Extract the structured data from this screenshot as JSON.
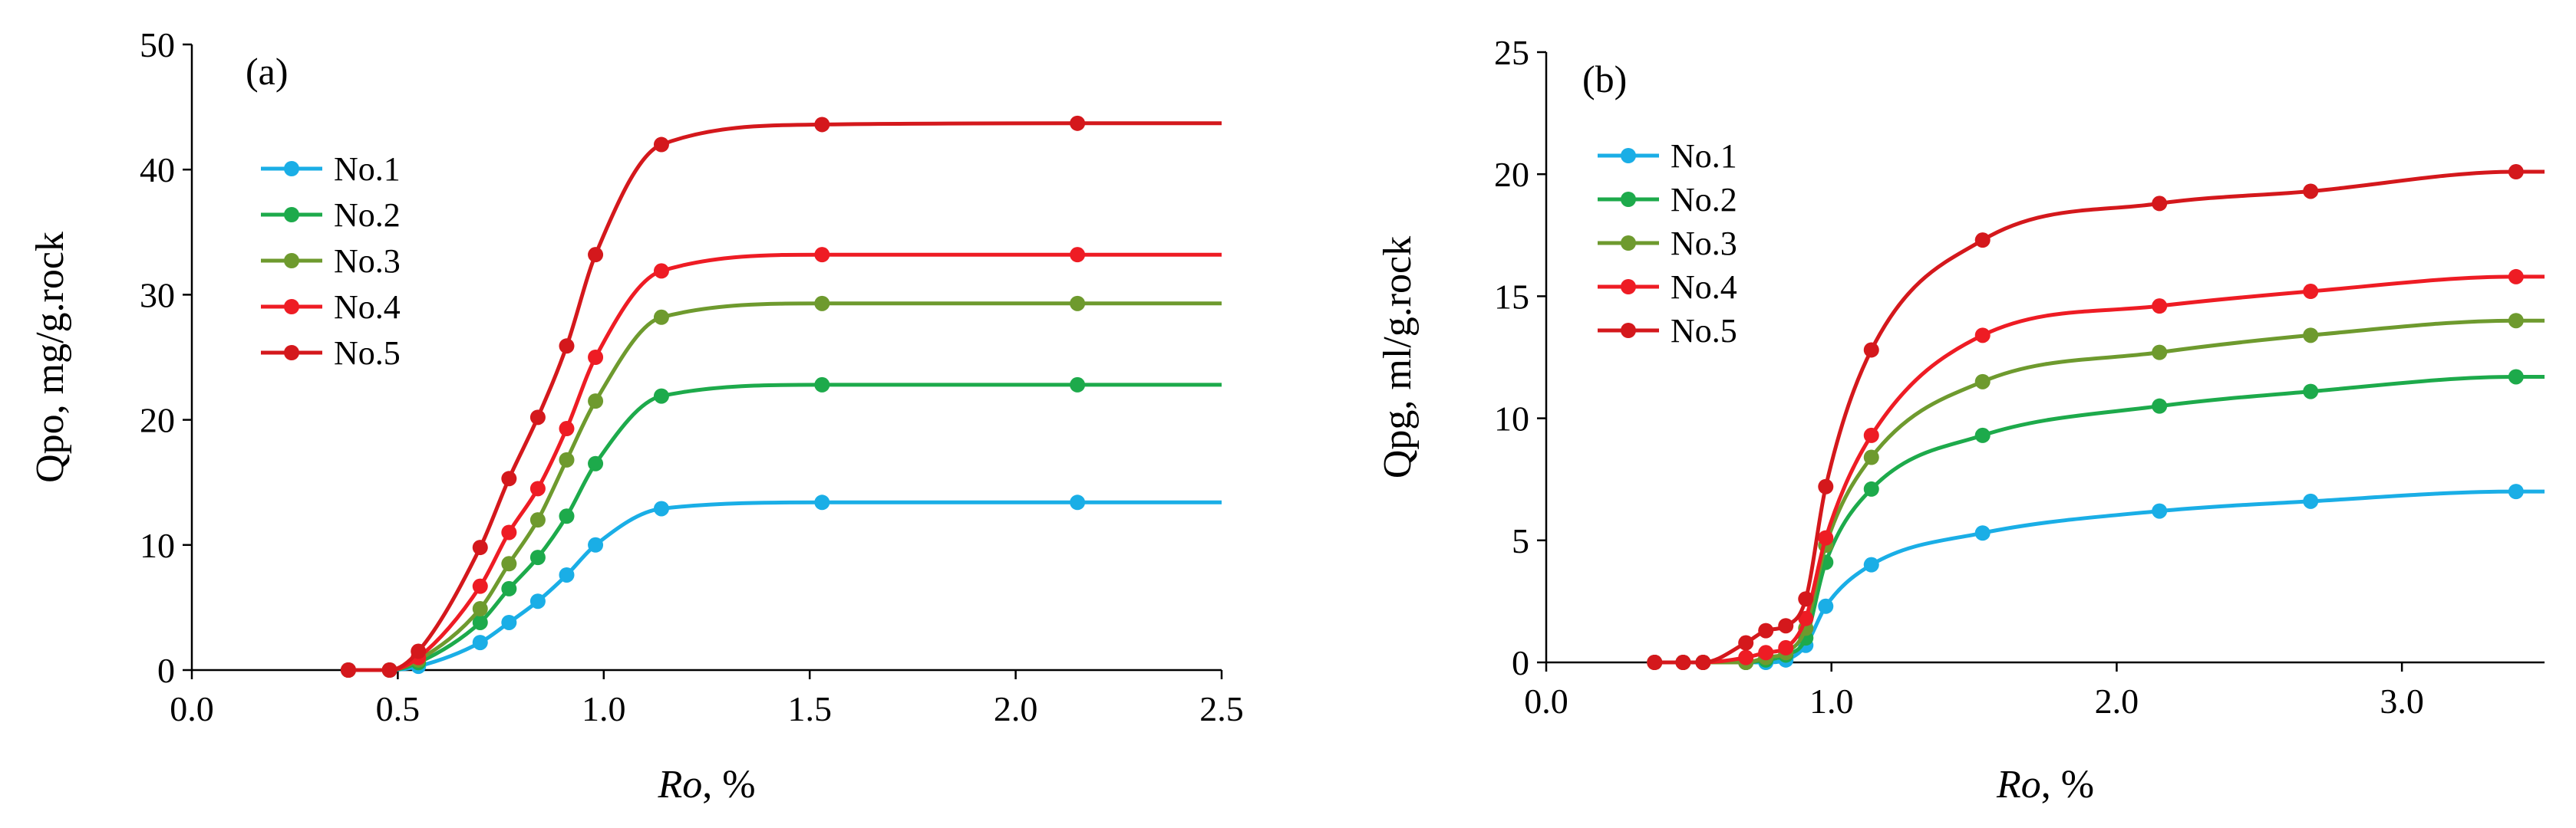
{
  "chart_data": [
    {
      "type": "line",
      "panel_label": "(a)",
      "xlabel_italic": "Ro",
      "xlabel_rest": ", %",
      "ylabel": "Qpo, mg/g.rock",
      "xlim": [
        0,
        2.5
      ],
      "ylim": [
        0,
        50
      ],
      "xticks": [
        "0.0",
        "0.5",
        "1.0",
        "1.5",
        "2.0",
        "2.5"
      ],
      "yticks": [
        "0",
        "10",
        "20",
        "30",
        "40",
        "50"
      ],
      "legend_position": "upper-left",
      "grid": false,
      "series": [
        {
          "name": "No.1",
          "color": "#1AAEE6",
          "x": [
            0.38,
            0.48,
            0.55,
            0.7,
            0.77,
            0.84,
            0.91,
            0.98,
            1.14,
            1.53,
            2.15
          ],
          "y": [
            0,
            0,
            0.3,
            2.2,
            3.8,
            5.5,
            7.6,
            10.0,
            12.9,
            13.4,
            13.4
          ]
        },
        {
          "name": "No.2",
          "color": "#1DAA4B",
          "x": [
            0.38,
            0.48,
            0.55,
            0.7,
            0.77,
            0.84,
            0.91,
            0.98,
            1.14,
            1.53,
            2.15
          ],
          "y": [
            0,
            0,
            0.6,
            3.8,
            6.5,
            9.0,
            12.3,
            16.5,
            21.9,
            22.8,
            22.8
          ]
        },
        {
          "name": "No.3",
          "color": "#6E9A2E",
          "x": [
            0.38,
            0.48,
            0.55,
            0.7,
            0.77,
            0.84,
            0.91,
            0.98,
            1.14,
            1.53,
            2.15
          ],
          "y": [
            0,
            0,
            0.8,
            4.9,
            8.5,
            12.0,
            16.8,
            21.5,
            28.2,
            29.3,
            29.3
          ]
        },
        {
          "name": "No.4",
          "color": "#EE1C24",
          "x": [
            0.38,
            0.48,
            0.55,
            0.7,
            0.77,
            0.84,
            0.91,
            0.98,
            1.14,
            1.53,
            2.15
          ],
          "y": [
            0,
            0,
            1.0,
            6.7,
            11.0,
            14.5,
            19.3,
            25.0,
            31.9,
            33.2,
            33.2
          ]
        },
        {
          "name": "No.5",
          "color": "#D4181C",
          "x": [
            0.38,
            0.48,
            0.55,
            0.7,
            0.77,
            0.84,
            0.91,
            0.98,
            1.14,
            1.53,
            2.15
          ],
          "y": [
            0,
            0,
            1.5,
            9.8,
            15.3,
            20.2,
            25.9,
            33.2,
            42.0,
            43.6,
            43.7
          ]
        }
      ]
    },
    {
      "type": "line",
      "panel_label": "(b)",
      "xlabel_italic": "Ro",
      "xlabel_rest": ", %",
      "ylabel": "Qpg, ml/g.rock",
      "xlim": [
        0,
        3.5
      ],
      "ylim": [
        0,
        25
      ],
      "xticks": [
        "0.0",
        "1.0",
        "2.0",
        "3.0"
      ],
      "yticks": [
        "0",
        "5",
        "10",
        "15",
        "20",
        "25"
      ],
      "legend_position": "upper-left",
      "grid": false,
      "series": [
        {
          "name": "No.1",
          "color": "#1AAEE6",
          "x": [
            0.38,
            0.48,
            0.55,
            0.7,
            0.77,
            0.84,
            0.91,
            0.98,
            1.14,
            1.53,
            2.15,
            2.68,
            3.4
          ],
          "y": [
            0,
            0,
            0,
            0,
            0,
            0.1,
            0.7,
            2.3,
            4.0,
            5.3,
            6.2,
            6.6,
            7.0
          ]
        },
        {
          "name": "No.2",
          "color": "#1DAA4B",
          "x": [
            0.38,
            0.48,
            0.55,
            0.7,
            0.77,
            0.84,
            0.91,
            0.98,
            1.14,
            1.53,
            2.15,
            2.68,
            3.4
          ],
          "y": [
            0,
            0,
            0,
            0,
            0.1,
            0.3,
            1.0,
            4.1,
            7.1,
            9.3,
            10.5,
            11.1,
            11.7
          ]
        },
        {
          "name": "No.3",
          "color": "#6E9A2E",
          "x": [
            0.38,
            0.48,
            0.55,
            0.7,
            0.77,
            0.84,
            0.91,
            0.98,
            1.14,
            1.53,
            2.15,
            2.68,
            3.4
          ],
          "y": [
            0,
            0,
            0,
            0,
            0.2,
            0.4,
            1.4,
            4.8,
            8.4,
            11.5,
            12.7,
            13.4,
            14.0
          ]
        },
        {
          "name": "No.4",
          "color": "#EE1C24",
          "x": [
            0.38,
            0.48,
            0.55,
            0.7,
            0.77,
            0.84,
            0.91,
            0.98,
            1.14,
            1.53,
            2.15,
            2.68,
            3.4
          ],
          "y": [
            0,
            0,
            0,
            0.2,
            0.4,
            0.6,
            1.8,
            5.1,
            9.3,
            13.4,
            14.6,
            15.2,
            15.8
          ]
        },
        {
          "name": "No.5",
          "color": "#D4181C",
          "x": [
            0.38,
            0.48,
            0.55,
            0.7,
            0.77,
            0.84,
            0.91,
            0.98,
            1.14,
            1.53,
            2.15,
            2.68,
            3.4
          ],
          "y": [
            0,
            0,
            0,
            0.8,
            1.3,
            1.5,
            2.6,
            7.2,
            12.8,
            17.3,
            18.8,
            19.3,
            20.1
          ]
        }
      ]
    }
  ]
}
